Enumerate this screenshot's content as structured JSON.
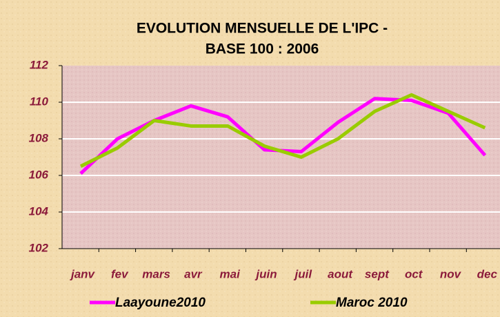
{
  "chart_data": {
    "type": "line",
    "title": [
      "EVOLUTION MENSUELLE DE L'IPC -",
      "BASE 100 : 2006"
    ],
    "categories": [
      "janv",
      "fev",
      "mars",
      "avr",
      "mai",
      "juin",
      "juil",
      "aout",
      "sept",
      "oct",
      "nov",
      "dec"
    ],
    "series": [
      {
        "name": "Laayoune2010",
        "color": "#ff00ff",
        "values": [
          106.1,
          108.0,
          109.0,
          109.8,
          109.2,
          107.4,
          107.3,
          108.9,
          110.2,
          110.1,
          109.4,
          107.1
        ]
      },
      {
        "name": "Maroc 2010",
        "color": "#99cc00",
        "values": [
          106.5,
          107.5,
          109.0,
          108.7,
          108.7,
          107.6,
          107.0,
          108.0,
          109.5,
          110.4,
          109.5,
          108.6
        ]
      }
    ],
    "ylim": [
      102,
      112
    ],
    "yticks": [
      102,
      104,
      106,
      108,
      110,
      112
    ],
    "grid": true,
    "legend": "bottom"
  }
}
